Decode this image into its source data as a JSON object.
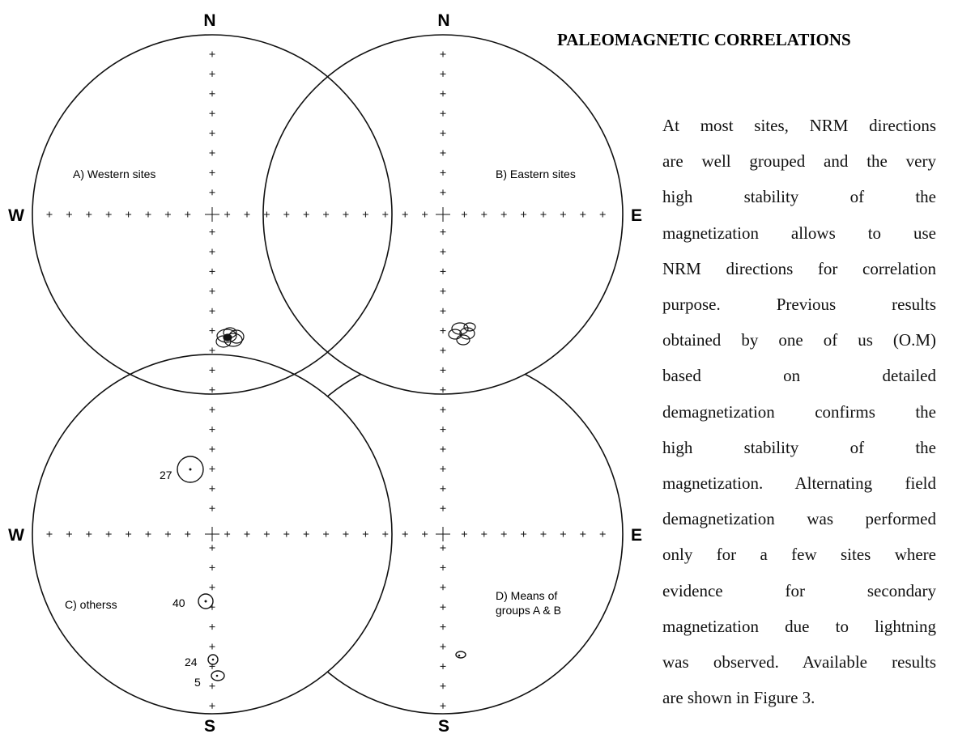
{
  "figure": {
    "north": [
      "N",
      "N"
    ],
    "south": [
      "S",
      "S"
    ],
    "west": [
      "W",
      "W"
    ],
    "east": [
      "E",
      "E"
    ],
    "panels": [
      "A) Western sites",
      "B) Eastern sites",
      "C) otherss",
      [
        "D) Means of",
        "groups A & B"
      ]
    ],
    "sites": [
      "27",
      "40",
      "24",
      "5"
    ]
  },
  "text": {
    "heading": "PALEOMAGNETIC CORRELATIONS",
    "lines": [
      "At most sites, NRM directions",
      "are well grouped and the very",
      "high stability of the",
      "magnetization allows to use",
      "NRM directions for correlation",
      "purpose. Previous results",
      "obtained by one of us (O.M)",
      "based on detailed",
      "demagnetization confirms the",
      "high stability of the",
      "magnetization. Alternating field",
      "demagnetization was performed",
      "only for a few sites where",
      "evidence for secondary",
      "magnetization due to lightning",
      "was observed. Available results",
      "are shown in Figure 3."
    ]
  }
}
